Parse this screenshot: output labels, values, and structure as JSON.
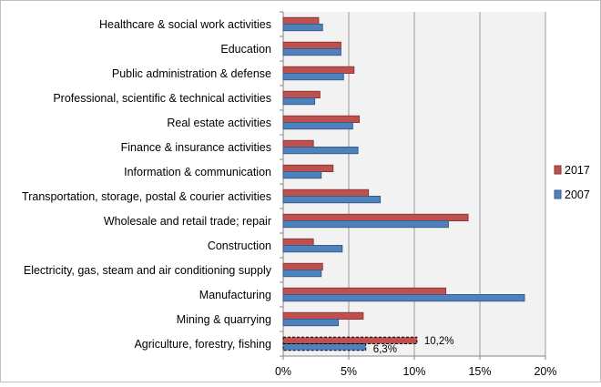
{
  "chart_data": {
    "type": "bar",
    "orientation": "horizontal",
    "categories": [
      "Healthcare & social work activities",
      "Education",
      "Public administration & defense",
      "Professional, scientific & technical activities",
      "Real estate activities",
      "Finance & insurance activities",
      "Information & communication",
      "Transportation, storage, postal & courier activities",
      "Wholesale and retail trade; repair",
      "Construction",
      "Electricity, gas, steam and air conditioning supply",
      "Manufacturing",
      "Mining & quarrying",
      "Agriculture, forestry, fishing"
    ],
    "series": [
      {
        "name": "2017",
        "color": "#c0504d",
        "values": [
          2.7,
          4.4,
          5.4,
          2.8,
          5.8,
          2.3,
          3.8,
          6.5,
          14.1,
          2.3,
          3.0,
          12.4,
          6.1,
          10.2
        ]
      },
      {
        "name": "2007",
        "color": "#4f81bd",
        "values": [
          3.0,
          4.4,
          4.6,
          2.4,
          5.3,
          5.7,
          2.9,
          7.4,
          12.6,
          4.5,
          2.9,
          18.4,
          4.2,
          6.3
        ]
      }
    ],
    "highlighted_category": "Agriculture, forestry, fishing",
    "data_labels": [
      {
        "series": "2017",
        "category": "Agriculture, forestry, fishing",
        "text": "10,2%"
      },
      {
        "series": "2007",
        "category": "Agriculture, forestry, fishing",
        "text": "6,3%"
      }
    ],
    "xlim": [
      0,
      20
    ],
    "xticks": [
      0,
      5,
      10,
      15,
      20
    ],
    "xtick_labels": [
      "0%",
      "5%",
      "10%",
      "15%",
      "20%"
    ],
    "xlabel": "",
    "ylabel": "",
    "title": "",
    "grid": true,
    "legend_position": "right",
    "plot_background": "#f2f2f2"
  }
}
